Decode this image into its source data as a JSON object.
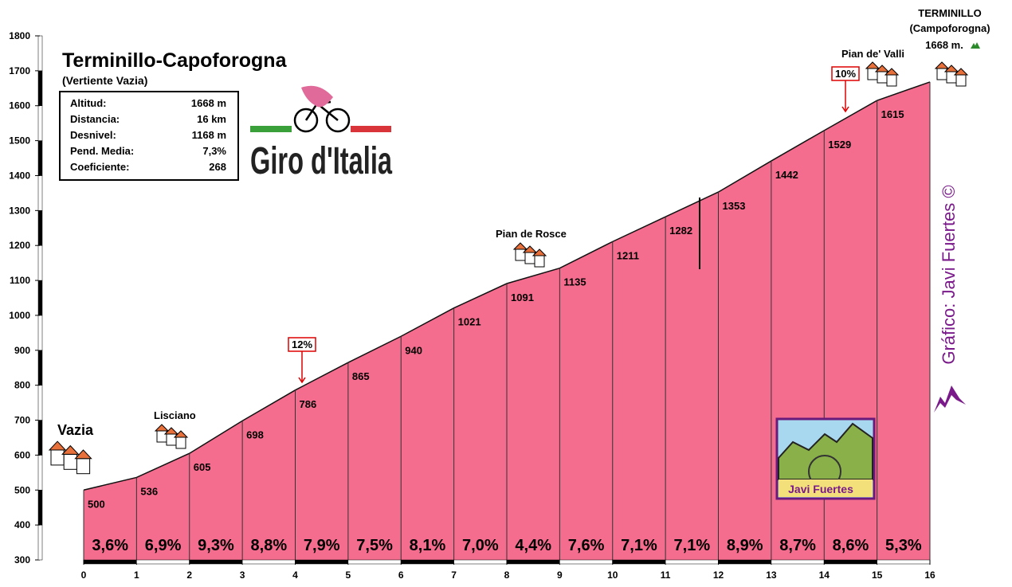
{
  "chart_data": {
    "type": "area",
    "title": "Terminillo-Capoforogna",
    "subtitle": "(Vertiente Vazia)",
    "x": [
      0,
      1,
      2,
      3,
      4,
      5,
      6,
      7,
      8,
      9,
      10,
      11,
      12,
      13,
      14,
      15,
      16
    ],
    "values": [
      500,
      536,
      605,
      698,
      786,
      865,
      940,
      1021,
      1091,
      1135,
      1211,
      1282,
      1353,
      1442,
      1529,
      1615,
      1668
    ],
    "color": "#f46d8e",
    "gradients": {
      "values": [
        3.6,
        6.9,
        9.3,
        8.8,
        7.9,
        7.5,
        8.1,
        7.0,
        4.4,
        7.6,
        7.1,
        7.1,
        8.9,
        8.7,
        8.6,
        5.3
      ],
      "value_labels": [
        "3,6%",
        "6,9%",
        "9,3%",
        "8,8%",
        "7,9%",
        "7,5%",
        "8,1%",
        "7,0%",
        "4,4%",
        "7,6%",
        "7,1%",
        "7,1%",
        "8,9%",
        "8,7%",
        "8,6%",
        "5,3%"
      ]
    },
    "xlim": [
      0,
      16
    ],
    "xticks": [
      0,
      1,
      2,
      3,
      4,
      5,
      6,
      7,
      8,
      9,
      10,
      11,
      12,
      13,
      14,
      15,
      16
    ],
    "ylim": [
      300,
      1800
    ],
    "yticks": [
      300,
      400,
      500,
      600,
      700,
      800,
      900,
      1000,
      1100,
      1200,
      1300,
      1400,
      1500,
      1600,
      1700,
      1800
    ],
    "info_box": [
      [
        "Altitud:",
        "1668 m"
      ],
      [
        "Distancia:",
        "16 km"
      ],
      [
        "Desnivel:",
        "1168 m"
      ],
      [
        "Pend. Media:",
        "7,3%"
      ],
      [
        "Coeficiente:",
        "268"
      ]
    ],
    "annotations": [
      "Vazia",
      "Lisciano",
      "Pian de Rosce",
      "Pian de' Valli",
      "TERMINILLO",
      "(Campoforogna)",
      "1668 m.",
      "12%",
      "10%",
      "Gráfico:  Javi Fuertes ©",
      "Giro d'Italia",
      "Javi Fuertes"
    ]
  }
}
